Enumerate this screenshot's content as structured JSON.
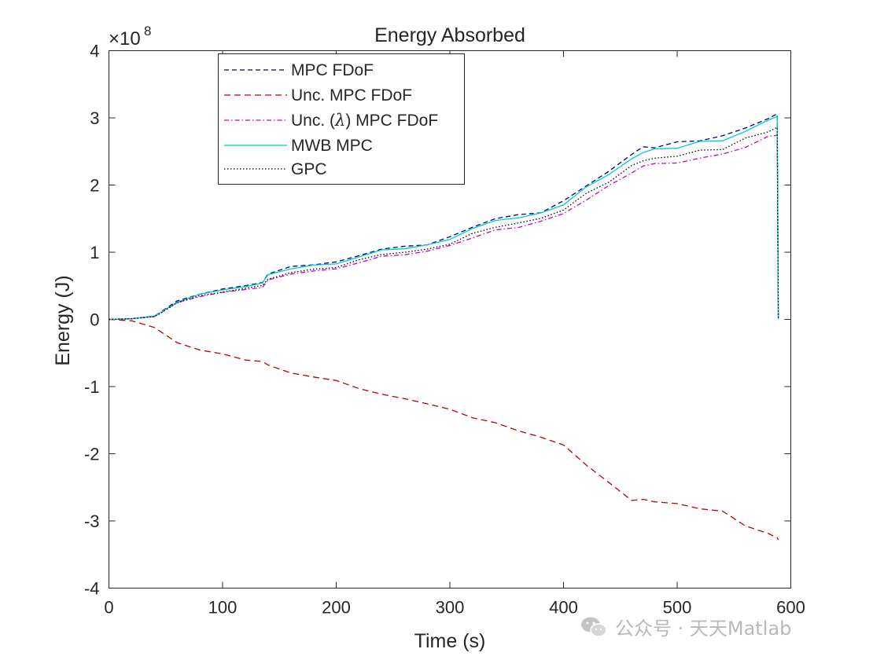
{
  "chart_data": {
    "type": "line",
    "title": "Energy Absorbed",
    "xlabel": "Time (s)",
    "ylabel": "Energy (J)",
    "xlim": [
      0,
      600
    ],
    "ylim": [
      -4,
      4
    ],
    "y_exponent_label": "×10",
    "y_exponent": "8",
    "x_ticks": [
      0,
      100,
      200,
      300,
      400,
      500,
      600
    ],
    "y_ticks": [
      4,
      3,
      2,
      1,
      0,
      -1,
      -2,
      -3,
      -4
    ],
    "grid": false,
    "legend_position": "top-left",
    "legend_labels": {
      "mpc": "MPC FDoF",
      "unc_pre": "Unc. MPC FDoF",
      "unc_lambda_pre": "Unc. (",
      "lambda": "λ",
      "unc_lambda_post": ") MPC FDoF",
      "mwb": "MWB MPC",
      "gpc": "GPC"
    },
    "x": [
      0,
      20,
      40,
      45,
      60,
      80,
      100,
      120,
      135,
      140,
      160,
      180,
      200,
      220,
      240,
      260,
      280,
      300,
      320,
      340,
      360,
      380,
      400,
      420,
      440,
      460,
      470,
      480,
      500,
      520,
      540,
      560,
      580,
      588,
      589
    ],
    "series": [
      {
        "name": "MPC FDoF",
        "color": "#000080",
        "dash": "6,4",
        "values": [
          0,
          0.01,
          0.05,
          0.1,
          0.27,
          0.38,
          0.45,
          0.5,
          0.55,
          0.68,
          0.78,
          0.82,
          0.85,
          0.95,
          1.05,
          1.08,
          1.12,
          1.22,
          1.38,
          1.5,
          1.55,
          1.6,
          1.75,
          2.0,
          2.2,
          2.45,
          2.55,
          2.57,
          2.62,
          2.68,
          2.72,
          2.85,
          3.0,
          3.06,
          0
        ]
      },
      {
        "name": "Unc. MPC FDoF",
        "color": "#c00000",
        "dash": "8,5",
        "values": [
          0,
          -0.02,
          -0.12,
          -0.18,
          -0.35,
          -0.45,
          -0.52,
          -0.6,
          -0.62,
          -0.68,
          -0.8,
          -0.85,
          -0.92,
          -1.02,
          -1.12,
          -1.18,
          -1.25,
          -1.35,
          -1.45,
          -1.55,
          -1.65,
          -1.75,
          -1.88,
          -2.15,
          -2.45,
          -2.68,
          -2.7,
          -2.72,
          -2.75,
          -2.8,
          -2.88,
          -3.05,
          -3.2,
          -3.25,
          -3.28
        ]
      },
      {
        "name": "Unc. (λ) MPC FDoF",
        "color": "#cc00cc",
        "dash": "6,3,1.5,3",
        "values": [
          0,
          0.01,
          0.04,
          0.09,
          0.25,
          0.34,
          0.4,
          0.45,
          0.48,
          0.58,
          0.68,
          0.72,
          0.75,
          0.85,
          0.93,
          0.97,
          1.01,
          1.1,
          1.22,
          1.32,
          1.38,
          1.45,
          1.58,
          1.78,
          1.98,
          2.2,
          2.28,
          2.3,
          2.34,
          2.4,
          2.45,
          2.58,
          2.7,
          2.74,
          0
        ]
      },
      {
        "name": "MWB MPC",
        "color": "#00cccc",
        "dash": "",
        "values": [
          0,
          0.01,
          0.05,
          0.1,
          0.26,
          0.37,
          0.44,
          0.49,
          0.54,
          0.66,
          0.76,
          0.8,
          0.83,
          0.93,
          1.03,
          1.06,
          1.1,
          1.2,
          1.35,
          1.47,
          1.52,
          1.57,
          1.72,
          1.96,
          2.16,
          2.4,
          2.5,
          2.52,
          2.57,
          2.63,
          2.67,
          2.8,
          2.95,
          3.02,
          0
        ]
      },
      {
        "name": "GPC",
        "color": "#000000",
        "dash": "1.5,2.5",
        "values": [
          0,
          0.01,
          0.04,
          0.09,
          0.25,
          0.35,
          0.41,
          0.46,
          0.5,
          0.6,
          0.7,
          0.74,
          0.78,
          0.88,
          0.97,
          1.0,
          1.04,
          1.13,
          1.27,
          1.38,
          1.43,
          1.5,
          1.64,
          1.86,
          2.06,
          2.28,
          2.38,
          2.4,
          2.44,
          2.5,
          2.55,
          2.68,
          2.8,
          2.86,
          0
        ]
      }
    ]
  },
  "watermark": {
    "text": "公众号 · 天天Matlab",
    "icon": "wechat-icon"
  }
}
